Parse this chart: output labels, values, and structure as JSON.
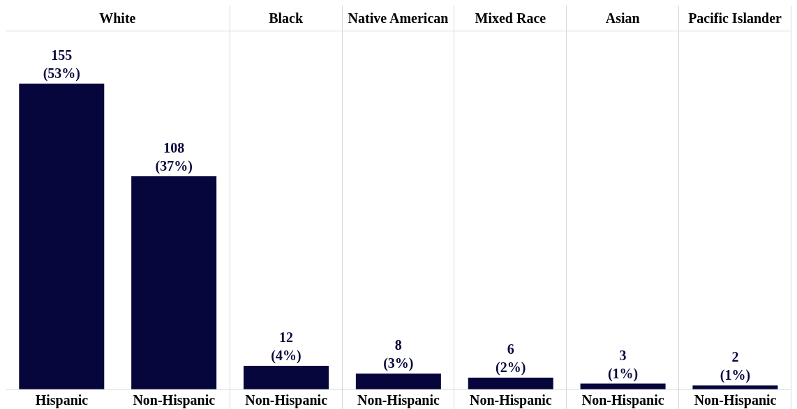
{
  "chart_data": {
    "type": "bar",
    "categories": [
      "White",
      "Black",
      "Native American",
      "Mixed Race",
      "Asian",
      "Pacific Islander"
    ],
    "series": [
      {
        "name": "Hispanic",
        "color": "#07063c",
        "values": [
          155,
          null,
          null,
          null,
          null,
          null
        ],
        "value_labels": [
          "155\n(53%)",
          null,
          null,
          null,
          null,
          null
        ]
      },
      {
        "name": "Non-Hispanic",
        "color": "#07063c",
        "values": [
          108,
          12,
          8,
          6,
          3,
          2
        ],
        "value_labels": [
          "108\n(37%)",
          "12\n(4%)",
          "8\n(3%)",
          "6\n(2%)",
          "3\n(1%)",
          "2\n(1%)"
        ]
      }
    ],
    "tick_labels": "x"
  }
}
